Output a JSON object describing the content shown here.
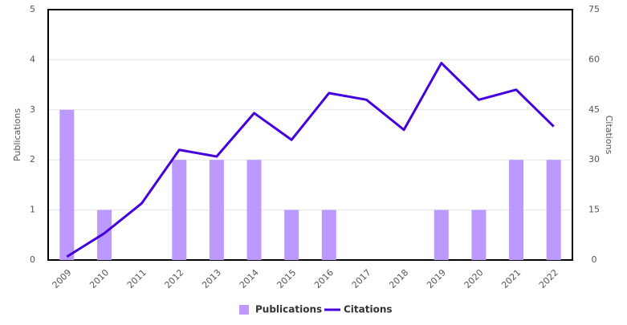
{
  "chart_data": {
    "type": "combo",
    "categories": [
      "2009",
      "2010",
      "2011",
      "2012",
      "2013",
      "2014",
      "2015",
      "2016",
      "2017",
      "2018",
      "2019",
      "2020",
      "2021",
      "2022"
    ],
    "series": [
      {
        "name": "Publications",
        "type": "bar",
        "axis": "y",
        "color": "#bb99ff",
        "values": [
          3,
          1,
          0,
          2,
          2,
          2,
          1,
          1,
          0,
          0,
          1,
          1,
          2,
          2
        ]
      },
      {
        "name": "Citations",
        "type": "line",
        "axis": "y2",
        "color": "#4400dd",
        "values": [
          1,
          8,
          17,
          33,
          31,
          44,
          36,
          50,
          48,
          39,
          59,
          48,
          51,
          40
        ]
      }
    ],
    "ylabel": "Publications",
    "y2label": "Citations",
    "ylim": [
      0,
      5
    ],
    "yticks": [
      0,
      1,
      2,
      3,
      4,
      5
    ],
    "y2lim": [
      0,
      75
    ],
    "y2ticks": [
      0,
      15,
      30,
      45,
      60,
      75
    ],
    "grid": true,
    "legend": "bottom"
  }
}
